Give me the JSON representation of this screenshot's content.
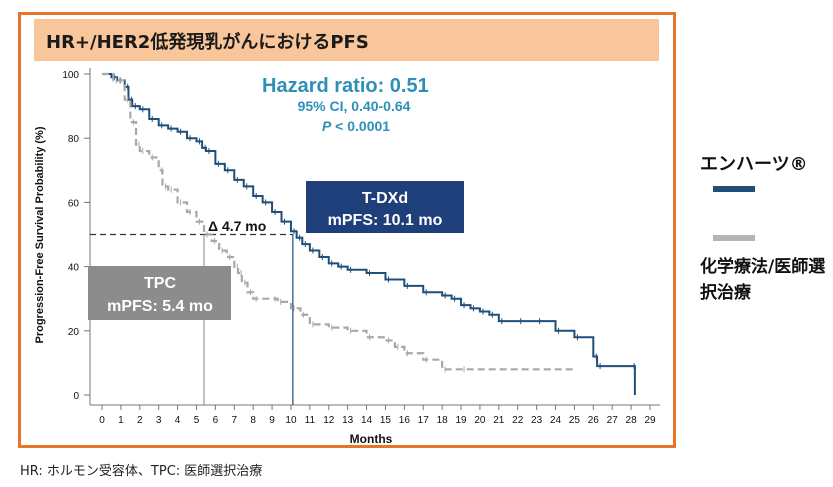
{
  "title": "HR+/HER2低発現乳がんにおけるPFS",
  "legend": {
    "tdxd": "エンハーツ®",
    "tpc": "化学療法/医師選択治療"
  },
  "footnote": "HR: ホルモン受容体、TPC:  医師選択治療",
  "annotations": {
    "hazard_ratio_label": "Hazard ratio",
    "hazard_ratio_value": ": 0.51",
    "ci": "95% CI, 0.40-0.64",
    "p_label": "P",
    "p_value": " < 0.0001",
    "delta": "Δ 4.7 mo",
    "tdxd_box_title": "T-DXd",
    "tdxd_box_sub": "mPFS: 10.1 mo",
    "tpc_box_title": "TPC",
    "tpc_box_sub": "mPFS: 5.4 mo"
  },
  "colors": {
    "tdxd": "#1f4e79",
    "tpc": "#a8a8a8",
    "frame": "#e8742a",
    "title_bar": "#f9c59a",
    "hazard_text": "#2e8fb8",
    "tdxd_box": "#1f3f7a",
    "tpc_box": "#8c8c8c"
  },
  "chart_data": {
    "type": "line",
    "xlabel": "Months",
    "ylabel": "Progression-Free Survival Probability (%)",
    "xlim": [
      0,
      29
    ],
    "ylim": [
      0,
      100
    ],
    "xticks": [
      0,
      1,
      2,
      3,
      4,
      5,
      6,
      7,
      8,
      9,
      10,
      11,
      12,
      13,
      14,
      15,
      16,
      17,
      18,
      19,
      20,
      21,
      22,
      23,
      24,
      25,
      26,
      27,
      28,
      29
    ],
    "yticks": [
      0,
      20,
      40,
      60,
      80,
      100
    ],
    "grid": false,
    "series": [
      {
        "name": "T-DXd",
        "step": true,
        "points": [
          [
            0,
            100
          ],
          [
            0.5,
            99
          ],
          [
            0.8,
            98
          ],
          [
            1.2,
            96
          ],
          [
            1.4,
            92
          ],
          [
            1.6,
            90
          ],
          [
            2,
            89
          ],
          [
            2.5,
            86
          ],
          [
            3,
            84
          ],
          [
            3.5,
            83
          ],
          [
            4,
            82
          ],
          [
            4.5,
            80
          ],
          [
            5,
            79
          ],
          [
            5.3,
            77
          ],
          [
            5.5,
            76
          ],
          [
            6,
            72
          ],
          [
            6.5,
            70
          ],
          [
            7,
            67
          ],
          [
            7.5,
            65
          ],
          [
            8,
            62
          ],
          [
            8.5,
            60
          ],
          [
            9,
            57
          ],
          [
            9.5,
            54
          ],
          [
            10,
            51
          ],
          [
            10.3,
            49
          ],
          [
            10.6,
            47
          ],
          [
            11,
            45
          ],
          [
            11.5,
            43
          ],
          [
            12,
            41
          ],
          [
            12.5,
            40
          ],
          [
            13,
            39
          ],
          [
            14,
            38
          ],
          [
            15,
            36
          ],
          [
            16,
            34
          ],
          [
            17,
            32
          ],
          [
            18,
            31
          ],
          [
            18.5,
            30
          ],
          [
            19,
            28
          ],
          [
            19.5,
            27
          ],
          [
            20,
            26
          ],
          [
            20.5,
            25
          ],
          [
            21,
            23
          ],
          [
            22,
            23
          ],
          [
            23,
            23
          ],
          [
            24,
            20
          ],
          [
            25,
            18
          ],
          [
            26,
            12
          ],
          [
            26.2,
            9
          ],
          [
            28,
            9
          ],
          [
            28.2,
            0
          ]
        ]
      },
      {
        "name": "TPC",
        "step": true,
        "points": [
          [
            0,
            100
          ],
          [
            0.6,
            98
          ],
          [
            1.2,
            92
          ],
          [
            1.5,
            85
          ],
          [
            1.8,
            78
          ],
          [
            2,
            76
          ],
          [
            2.5,
            74
          ],
          [
            3,
            70
          ],
          [
            3.2,
            65
          ],
          [
            3.5,
            64
          ],
          [
            4,
            60
          ],
          [
            4.5,
            57
          ],
          [
            5,
            54
          ],
          [
            5.4,
            50
          ],
          [
            5.8,
            48
          ],
          [
            6.2,
            45
          ],
          [
            6.6,
            43
          ],
          [
            7,
            40
          ],
          [
            7.2,
            38
          ],
          [
            7.4,
            35
          ],
          [
            7.7,
            32
          ],
          [
            8,
            30
          ],
          [
            9,
            30
          ],
          [
            9.3,
            29
          ],
          [
            10,
            27
          ],
          [
            10.5,
            25
          ],
          [
            11,
            22
          ],
          [
            12,
            21
          ],
          [
            13,
            20
          ],
          [
            14,
            18
          ],
          [
            15,
            17
          ],
          [
            15.5,
            15
          ],
          [
            16,
            13
          ],
          [
            17,
            11
          ],
          [
            18,
            8
          ],
          [
            19,
            8
          ],
          [
            25,
            8
          ]
        ]
      }
    ],
    "reference_lines": {
      "y_median": 50,
      "tpc_median_x": 5.4,
      "tdxd_median_x": 10.1
    }
  }
}
